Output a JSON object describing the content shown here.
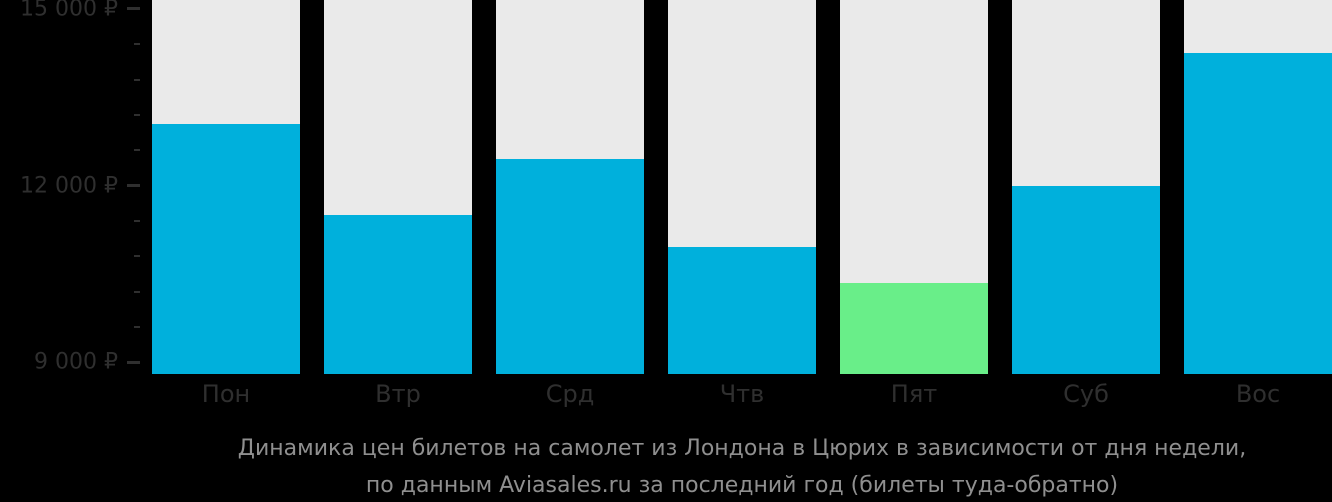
{
  "chart_data": {
    "type": "bar",
    "title_line1": "Динамика цен билетов на самолет из Лондона в Цюрих в зависимости от дня недели,",
    "title_line2": "по данным Aviasales.ru за последний год (билеты туда-обратно)",
    "categories": [
      "Пон",
      "Втр",
      "Срд",
      "Чтв",
      "Пят",
      "Суб",
      "Вос"
    ],
    "values": [
      13050,
      11500,
      12450,
      10950,
      10350,
      12000,
      14250
    ],
    "currency": "₽",
    "highlight_index": 4,
    "legend": null,
    "grid": false,
    "y_axis": {
      "ymin": 8800,
      "ymax": 15150,
      "major_ticks": [
        {
          "value": 15000,
          "label": "15 000 ₽"
        },
        {
          "value": 12000,
          "label": "12 000 ₽"
        },
        {
          "value": 9000,
          "label": "9 000 ₽"
        }
      ],
      "minor_ticks": [
        14400,
        13800,
        13200,
        12600,
        11400,
        10800,
        10200,
        9600
      ]
    },
    "colors": {
      "bar": "#00b0dc",
      "highlight_bar": "#69ee89",
      "column_background": "#eaeaea",
      "axis_text": "#2f2f2f",
      "tick_mark": "#2f2f2f",
      "title_text": "#8f8f8f",
      "background": "#000000"
    }
  }
}
